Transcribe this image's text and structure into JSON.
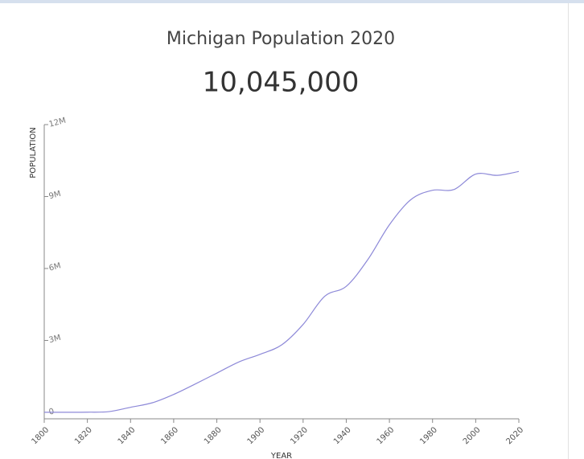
{
  "chart_data": {
    "type": "line",
    "title": "Michigan Population 2020",
    "subtitle": "10,045,000",
    "x_label": "YEAR",
    "y_label": "POPULATION",
    "x": [
      1800,
      1810,
      1820,
      1830,
      1840,
      1850,
      1860,
      1870,
      1880,
      1890,
      1900,
      1910,
      1920,
      1930,
      1940,
      1950,
      1960,
      1970,
      1980,
      1990,
      2000,
      2010,
      2020
    ],
    "series": [
      {
        "name": "Population",
        "color": "#8d89d8",
        "values": [
          4000,
          5000,
          9000,
          32000,
          212000,
          398000,
          749000,
          1184000,
          1637000,
          2094000,
          2421000,
          2810000,
          3668000,
          4842000,
          5256000,
          6372000,
          7823000,
          8875000,
          9262000,
          9295000,
          9938000,
          9884000,
          10045000
        ]
      }
    ],
    "xlim": [
      1800,
      2020
    ],
    "xticks": [
      1800,
      1820,
      1840,
      1860,
      1880,
      1900,
      1920,
      1940,
      1960,
      1980,
      2000,
      2020
    ],
    "ylim": [
      0,
      12000000
    ],
    "yticks": [
      0,
      {
        "value": 3000000,
        "label": "3M"
      },
      {
        "value": 6000000,
        "label": "6M"
      },
      {
        "value": 9000000,
        "label": "9M"
      },
      {
        "value": 12000000,
        "label": "12M"
      }
    ],
    "grid": false
  }
}
